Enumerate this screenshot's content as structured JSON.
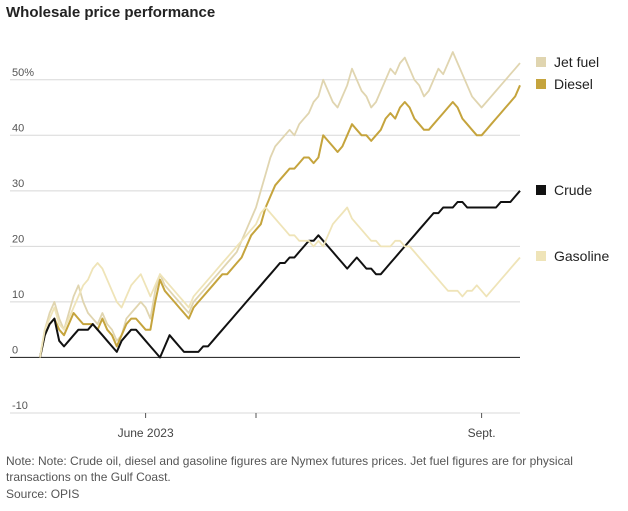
{
  "title": "Wholesale price performance",
  "note": "Note: Note: Crude oil, diesel and gasoline figures are Nymex futures prices. Jet fuel figures are for physical transactions on the Gulf Coast.",
  "source": "Source: OPIS",
  "chart_data": {
    "type": "line",
    "x_range": [
      0,
      100
    ],
    "ylim": [
      -10,
      55
    ],
    "yticks": [
      {
        "value": 50,
        "label": "50%"
      },
      {
        "value": 40,
        "label": "40"
      },
      {
        "value": 30,
        "label": "30"
      },
      {
        "value": 20,
        "label": "20"
      },
      {
        "value": 10,
        "label": "10"
      },
      {
        "value": 0,
        "label": "0"
      },
      {
        "value": -10,
        "label": "-10"
      }
    ],
    "xticks": [
      {
        "x": 22,
        "label": "June 2023"
      },
      {
        "x": 45,
        "label": ""
      },
      {
        "x": 92,
        "label": "Sept."
      }
    ],
    "grid": true,
    "series": [
      {
        "name": "Jet fuel",
        "color": "#e0d5b0",
        "x": [
          0,
          1,
          2,
          3,
          4,
          5,
          6,
          7,
          8,
          9,
          10,
          11,
          12,
          13,
          14,
          15,
          16,
          17,
          18,
          19,
          20,
          21,
          22,
          23,
          24,
          25,
          26,
          27,
          28,
          29,
          30,
          31,
          32,
          33,
          34,
          35,
          36,
          37,
          38,
          39,
          40,
          41,
          42,
          43,
          44,
          45,
          46,
          47,
          48,
          49,
          50,
          51,
          52,
          53,
          54,
          55,
          56,
          57,
          58,
          59,
          60,
          61,
          62,
          63,
          64,
          65,
          66,
          67,
          68,
          69,
          70,
          71,
          72,
          73,
          74,
          75,
          76,
          77,
          78,
          79,
          80,
          81,
          82,
          83,
          84,
          85,
          86,
          87,
          88,
          89,
          90,
          91,
          92,
          93,
          94,
          95,
          96,
          97,
          98,
          99,
          100
        ],
        "y": [
          0,
          5,
          8,
          10,
          7,
          5,
          8,
          11,
          13,
          10,
          8,
          7,
          6,
          8,
          6,
          5,
          3,
          4,
          7,
          8,
          9,
          10,
          9,
          7,
          12,
          15,
          13,
          12,
          11,
          10,
          9,
          8,
          10,
          11,
          12,
          13,
          14,
          15,
          16,
          17,
          18,
          19,
          21,
          23,
          25,
          27,
          30,
          33,
          36,
          38,
          39,
          40,
          41,
          40,
          42,
          43,
          44,
          46,
          47,
          50,
          48,
          46,
          45,
          47,
          49,
          52,
          50,
          48,
          47,
          45,
          46,
          48,
          50,
          52,
          51,
          53,
          54,
          52,
          50,
          49,
          47,
          48,
          50,
          52,
          51,
          53,
          55,
          53,
          51,
          49,
          47,
          46,
          45,
          46,
          47,
          48,
          49,
          50,
          51,
          52,
          53
        ]
      },
      {
        "name": "Diesel",
        "color": "#c5a43d",
        "x": [
          0,
          1,
          2,
          3,
          4,
          5,
          6,
          7,
          8,
          9,
          10,
          11,
          12,
          13,
          14,
          15,
          16,
          17,
          18,
          19,
          20,
          21,
          22,
          23,
          24,
          25,
          26,
          27,
          28,
          29,
          30,
          31,
          32,
          33,
          34,
          35,
          36,
          37,
          38,
          39,
          40,
          41,
          42,
          43,
          44,
          45,
          46,
          47,
          48,
          49,
          50,
          51,
          52,
          53,
          54,
          55,
          56,
          57,
          58,
          59,
          60,
          61,
          62,
          63,
          64,
          65,
          66,
          67,
          68,
          69,
          70,
          71,
          72,
          73,
          74,
          75,
          76,
          77,
          78,
          79,
          80,
          81,
          82,
          83,
          84,
          85,
          86,
          87,
          88,
          89,
          90,
          91,
          92,
          93,
          94,
          95,
          96,
          97,
          98,
          99,
          100
        ],
        "y": [
          0,
          4,
          6,
          7,
          5,
          4,
          6,
          8,
          7,
          6,
          6,
          6,
          5,
          7,
          5,
          4,
          2,
          4,
          6,
          7,
          7,
          6,
          5,
          5,
          10,
          14,
          12,
          11,
          10,
          9,
          8,
          7,
          9,
          10,
          11,
          12,
          13,
          14,
          15,
          15,
          16,
          17,
          18,
          20,
          22,
          23,
          24,
          27,
          29,
          31,
          32,
          33,
          34,
          34,
          35,
          36,
          36,
          35,
          36,
          40,
          39,
          38,
          37,
          38,
          40,
          42,
          41,
          40,
          40,
          39,
          40,
          41,
          43,
          44,
          43,
          45,
          46,
          45,
          43,
          42,
          41,
          41,
          42,
          43,
          44,
          45,
          46,
          45,
          43,
          42,
          41,
          40,
          40,
          41,
          42,
          43,
          44,
          45,
          46,
          47,
          49
        ]
      },
      {
        "name": "Crude",
        "color": "#111111",
        "x": [
          0,
          1,
          2,
          3,
          4,
          5,
          6,
          7,
          8,
          9,
          10,
          11,
          12,
          13,
          14,
          15,
          16,
          17,
          18,
          19,
          20,
          21,
          22,
          23,
          24,
          25,
          26,
          27,
          28,
          29,
          30,
          31,
          32,
          33,
          34,
          35,
          36,
          37,
          38,
          39,
          40,
          41,
          42,
          43,
          44,
          45,
          46,
          47,
          48,
          49,
          50,
          51,
          52,
          53,
          54,
          55,
          56,
          57,
          58,
          59,
          60,
          61,
          62,
          63,
          64,
          65,
          66,
          67,
          68,
          69,
          70,
          71,
          72,
          73,
          74,
          75,
          76,
          77,
          78,
          79,
          80,
          81,
          82,
          83,
          84,
          85,
          86,
          87,
          88,
          89,
          90,
          91,
          92,
          93,
          94,
          95,
          96,
          97,
          98,
          99,
          100
        ],
        "y": [
          0,
          4,
          6,
          7,
          3,
          2,
          3,
          4,
          5,
          5,
          5,
          6,
          5,
          4,
          3,
          2,
          1,
          3,
          4,
          5,
          5,
          4,
          3,
          2,
          1,
          0,
          2,
          4,
          3,
          2,
          1,
          1,
          1,
          1,
          2,
          2,
          3,
          4,
          5,
          6,
          7,
          8,
          9,
          10,
          11,
          12,
          13,
          14,
          15,
          16,
          17,
          17,
          18,
          18,
          19,
          20,
          21,
          21,
          22,
          21,
          20,
          19,
          18,
          17,
          16,
          17,
          18,
          17,
          16,
          16,
          15,
          15,
          16,
          17,
          18,
          19,
          20,
          21,
          22,
          23,
          24,
          25,
          26,
          26,
          27,
          27,
          27,
          28,
          28,
          27,
          27,
          27,
          27,
          27,
          27,
          27,
          28,
          28,
          28,
          29,
          30
        ]
      },
      {
        "name": "Gasoline",
        "color": "#efe4b8",
        "x": [
          0,
          1,
          2,
          3,
          4,
          5,
          6,
          7,
          8,
          9,
          10,
          11,
          12,
          13,
          14,
          15,
          16,
          17,
          18,
          19,
          20,
          21,
          22,
          23,
          24,
          25,
          26,
          27,
          28,
          29,
          30,
          31,
          32,
          33,
          34,
          35,
          36,
          37,
          38,
          39,
          40,
          41,
          42,
          43,
          44,
          45,
          46,
          47,
          48,
          49,
          50,
          51,
          52,
          53,
          54,
          55,
          56,
          57,
          58,
          59,
          60,
          61,
          62,
          63,
          64,
          65,
          66,
          67,
          68,
          69,
          70,
          71,
          72,
          73,
          74,
          75,
          76,
          77,
          78,
          79,
          80,
          81,
          82,
          83,
          84,
          85,
          86,
          87,
          88,
          89,
          90,
          91,
          92,
          93,
          94,
          95,
          96,
          97,
          98,
          99,
          100
        ],
        "y": [
          0,
          5,
          7,
          9,
          6,
          5,
          7,
          9,
          11,
          13,
          14,
          16,
          17,
          16,
          14,
          12,
          10,
          9,
          11,
          13,
          14,
          15,
          13,
          11,
          13,
          15,
          14,
          13,
          12,
          11,
          10,
          9,
          11,
          12,
          13,
          14,
          15,
          16,
          17,
          18,
          19,
          20,
          21,
          22,
          23,
          24,
          26,
          27,
          26,
          25,
          24,
          23,
          22,
          22,
          21,
          21,
          21,
          20,
          21,
          20,
          22,
          24,
          25,
          26,
          27,
          25,
          24,
          23,
          22,
          21,
          21,
          20,
          20,
          20,
          21,
          21,
          20,
          20,
          19,
          18,
          17,
          16,
          15,
          14,
          13,
          12,
          12,
          12,
          11,
          12,
          12,
          13,
          12,
          11,
          12,
          13,
          14,
          15,
          16,
          17,
          18
        ]
      }
    ],
    "legend": [
      {
        "name": "Jet fuel",
        "color": "#e0d5b0",
        "y_value": 53
      },
      {
        "name": "Diesel",
        "color": "#c5a43d",
        "y_value": 49
      },
      {
        "name": "Crude",
        "color": "#111111",
        "y_value": 30
      },
      {
        "name": "Gasoline",
        "color": "#efe4b8",
        "y_value": 18
      }
    ]
  }
}
